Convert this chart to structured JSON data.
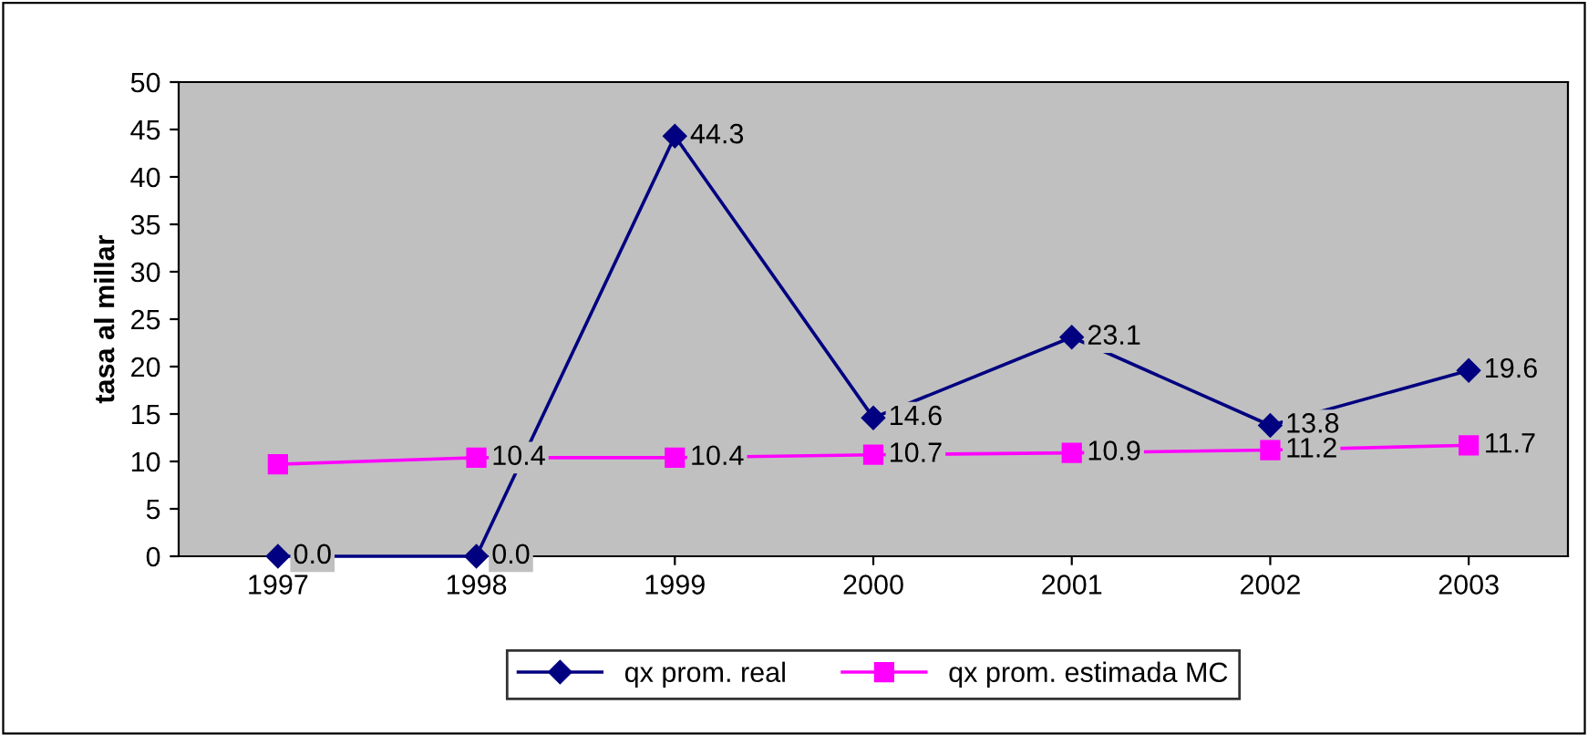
{
  "chart_data": {
    "type": "line",
    "ylabel": "tasa al millar",
    "categories": [
      "1997",
      "1998",
      "1999",
      "2000",
      "2001",
      "2002",
      "2003"
    ],
    "series": [
      {
        "name": "qx prom. real",
        "color": "#000080",
        "marker": "diamond",
        "values": [
          0.0,
          0.0,
          44.3,
          14.6,
          23.1,
          13.8,
          19.6
        ],
        "value_labels": [
          "0.0",
          "0.0",
          "44.3",
          "14.6",
          "23.1",
          "13.8",
          "19.6"
        ]
      },
      {
        "name": "qx prom. estimada MC",
        "color": "#ff00ff",
        "marker": "square",
        "values": [
          9.7,
          10.4,
          10.4,
          10.7,
          10.9,
          11.2,
          11.7
        ],
        "value_labels": [
          null,
          "10.4",
          "10.4",
          "10.7",
          "10.9",
          "11.2",
          "11.7"
        ]
      }
    ],
    "ylim": [
      0,
      50
    ],
    "yticks": [
      0,
      5,
      10,
      15,
      20,
      25,
      30,
      35,
      40,
      45,
      50
    ],
    "grid": false,
    "legend": "bottom",
    "line_style": "solid"
  }
}
